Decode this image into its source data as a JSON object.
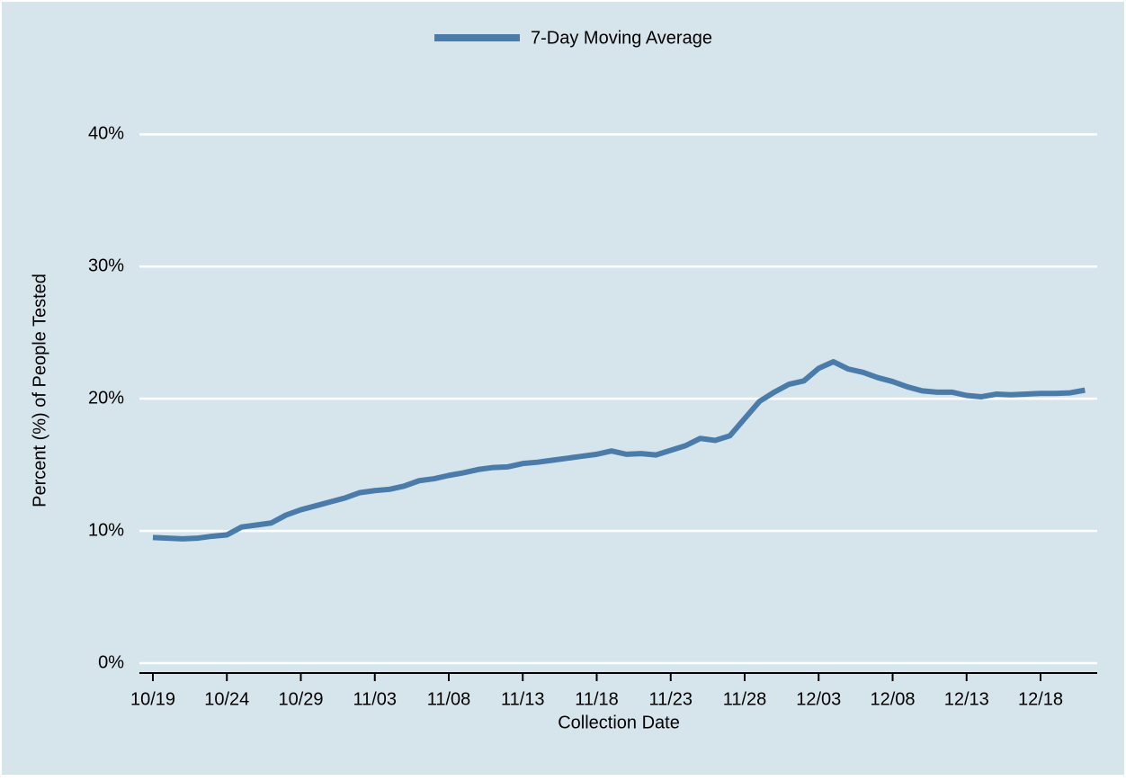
{
  "chart_data": {
    "type": "line",
    "x_label": "Collection Date",
    "y_label": "Percent (%) of People Tested",
    "categories": [
      "10/19",
      null,
      null,
      null,
      null,
      "10/24",
      null,
      null,
      null,
      null,
      "10/29",
      null,
      null,
      null,
      null,
      "11/03",
      null,
      null,
      null,
      null,
      "11/08",
      null,
      null,
      null,
      null,
      "11/13",
      null,
      null,
      null,
      null,
      "11/18",
      null,
      null,
      null,
      null,
      "11/23",
      null,
      null,
      null,
      null,
      "11/28",
      null,
      null,
      null,
      null,
      "12/03",
      null,
      null,
      null,
      null,
      "12/08",
      null,
      null,
      null,
      null,
      "12/13",
      null,
      null,
      null,
      null,
      "12/18",
      null,
      null,
      null
    ],
    "series": [
      {
        "name": "7-Day Moving Average",
        "color": "#4a7cab",
        "values": [
          9.5,
          9.45,
          9.4,
          9.45,
          9.6,
          9.7,
          10.3,
          10.45,
          10.6,
          11.2,
          11.6,
          11.9,
          12.2,
          12.5,
          12.9,
          13.05,
          13.15,
          13.4,
          13.8,
          13.95,
          14.2,
          14.4,
          14.65,
          14.8,
          14.85,
          15.1,
          15.2,
          15.35,
          15.5,
          15.65,
          15.8,
          16.05,
          15.8,
          15.85,
          15.75,
          16.1,
          16.45,
          17.0,
          16.85,
          17.2,
          18.5,
          19.8,
          20.5,
          21.1,
          21.35,
          22.3,
          22.8,
          22.25,
          22.0,
          21.6,
          21.3,
          20.9,
          20.6,
          20.5,
          20.5,
          20.25,
          20.15,
          20.35,
          20.3,
          20.35,
          20.4,
          20.4,
          20.45,
          20.65
        ]
      }
    ],
    "ylim": [
      -0.75,
      42
    ],
    "yticks": [
      {
        "value": 0,
        "label": "0%"
      },
      {
        "value": 10,
        "label": "10%"
      },
      {
        "value": 20,
        "label": "20%"
      },
      {
        "value": 30,
        "label": "30%"
      },
      {
        "value": 40,
        "label": "40%"
      }
    ],
    "grid": true,
    "legend": "top"
  }
}
